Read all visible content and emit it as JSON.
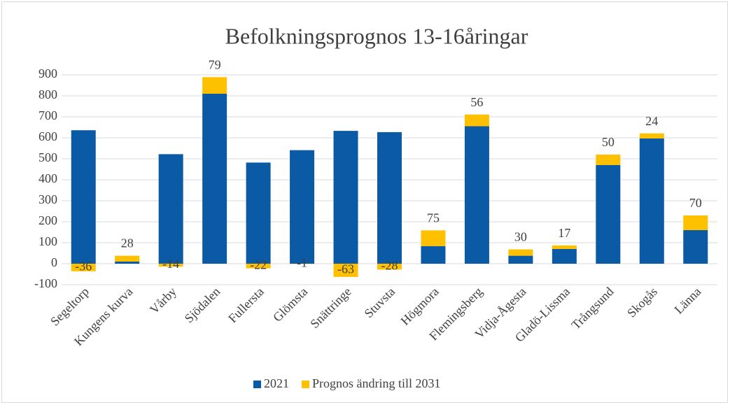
{
  "chart_data": {
    "type": "stacked_bar",
    "title": "Befolkningsprognos 13-16åringar",
    "categories": [
      "Segeltorp",
      "Kungens kurva",
      "Vårby",
      "Sjödalen",
      "Fullersta",
      "Glömsta",
      "Snättringe",
      "Stuvsta",
      "Högmora",
      "Flemingsberg",
      "Vidja-Ågesta",
      "Gladö-Lissma",
      "Trångsund",
      "Skogås",
      "Länna"
    ],
    "series": [
      {
        "name": "2021",
        "color": "#0b5aa6",
        "values": [
          636,
          10,
          522,
          810,
          482,
          541,
          633,
          627,
          84,
          655,
          38,
          70,
          470,
          597,
          160
        ]
      },
      {
        "name": "Prognos ändring till 2031",
        "color": "#ffc000",
        "values": [
          -36,
          28,
          -14,
          79,
          -22,
          -1,
          -63,
          -28,
          75,
          56,
          30,
          17,
          50,
          24,
          70
        ],
        "data_labels": true
      }
    ],
    "ylim": [
      -100,
      900
    ],
    "yticks": [
      -100,
      0,
      100,
      200,
      300,
      400,
      500,
      600,
      700,
      800,
      900
    ],
    "grid": true,
    "legend": "bottom"
  }
}
